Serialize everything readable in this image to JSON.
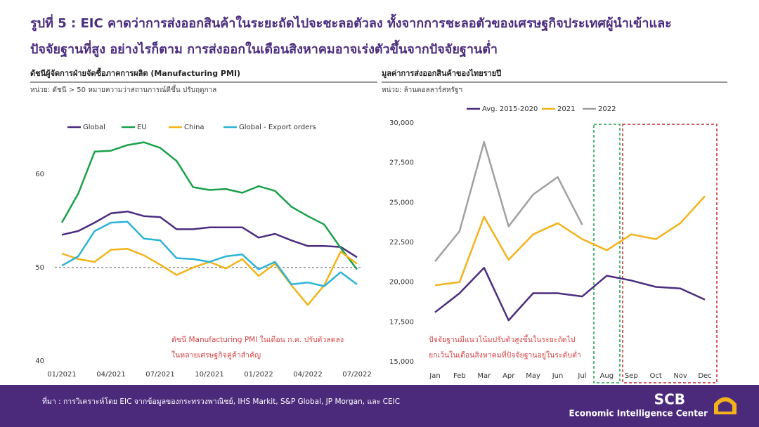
{
  "title": [
    "รูปที่ 5 : EIC คาดว่าการส่งออกสินค้าในระยะถัดไปจะชะลอตัวลง ทั้งจากการชะลอตัวของเศรษฐกิจประเทศผู้นำเข้าและ",
    "ปัจจัยฐานที่สูง อย่างไรก็ตาม การส่งออกในเดือนสิงหาคมอาจเร่งตัวขึ้นจากปัจจัยฐานต่ำ"
  ],
  "chart_data": [
    {
      "type": "line",
      "title": "ดัชนีผู้จัดการฝ่ายจัดซื้อภาคการผลิต (Manufacturing PMI)",
      "subtitle": "หน่วย: ดัชนี > 50 หมายความว่าสถานการณ์ดีขึ้น ปรับฤดูกาล",
      "categories": [
        "01/2021",
        null,
        null,
        "04/2021",
        null,
        null,
        "07/2021",
        null,
        null,
        "10/2021",
        null,
        null,
        "01/2022",
        null,
        null,
        "04/2022",
        null,
        null,
        "07/2022"
      ],
      "series": [
        {
          "name": "Global",
          "color": "#4b2d7f",
          "values": [
            53.5,
            53.9,
            54.8,
            55.8,
            56.0,
            55.5,
            55.4,
            54.1,
            54.1,
            54.3,
            54.3,
            54.3,
            53.2,
            53.6,
            52.9,
            52.3,
            52.3,
            52.2,
            51.1
          ]
        },
        {
          "name": "EU",
          "color": "#1aa04a",
          "values": [
            54.8,
            57.9,
            62.4,
            62.5,
            63.1,
            63.4,
            62.8,
            61.4,
            58.6,
            58.3,
            58.4,
            58.0,
            58.7,
            58.2,
            56.5,
            55.5,
            54.6,
            52.1,
            49.8
          ]
        },
        {
          "name": "China",
          "color": "#f2b31a",
          "values": [
            51.5,
            50.9,
            50.6,
            51.9,
            52.0,
            51.3,
            50.3,
            49.2,
            50.0,
            50.6,
            49.9,
            50.9,
            49.1,
            50.4,
            48.1,
            46.0,
            48.1,
            51.7,
            50.4
          ]
        },
        {
          "name": "Global - Export orders",
          "color": "#2bb3d6",
          "values": [
            50.2,
            51.2,
            53.9,
            54.8,
            54.9,
            53.1,
            52.9,
            51.0,
            50.9,
            50.6,
            51.2,
            51.4,
            49.8,
            50.6,
            48.2,
            48.4,
            48.0,
            49.5,
            48.2
          ]
        }
      ],
      "ylim": [
        40,
        66
      ],
      "yticks": [
        40,
        50,
        60
      ],
      "grid": false,
      "reference_line": 50,
      "annotation": [
        "ดัชนี Manufacturing PMI ในเดือน ก.ค. ปรับตัวลดลง",
        "ในหลายเศรษฐกิจคู่ค้าสำคัญ"
      ]
    },
    {
      "type": "line",
      "title": "มูลค่าการส่งออกสินค้าของไทยรายปี",
      "subtitle": "หน่วย: ล้านดอลลาร์สหรัฐฯ",
      "categories": [
        "Jan",
        "Feb",
        "Mar",
        "Apr",
        "May",
        "Jun",
        "Jul",
        "Aug",
        "Sep",
        "Oct",
        "Nov",
        "Dec"
      ],
      "series": [
        {
          "name": "Avg. 2015-2020",
          "color": "#4b2d7f",
          "values": [
            18100,
            19300,
            20900,
            17600,
            19300,
            19300,
            19100,
            20400,
            20100,
            19700,
            19600,
            18900
          ]
        },
        {
          "name": "2021",
          "color": "#f2b31a",
          "values": [
            19800,
            20000,
            24100,
            21400,
            23000,
            23700,
            22700,
            22000,
            23000,
            22700,
            23700,
            25400
          ]
        },
        {
          "name": "2022",
          "color": "#a0a0a0",
          "values": [
            21300,
            23200,
            28800,
            23500,
            25500,
            26600,
            23600,
            null,
            null,
            null,
            null,
            null
          ]
        }
      ],
      "ylim": [
        15000,
        30000
      ],
      "yticks": [
        {
          "value": 15000,
          "label": "15,000"
        },
        {
          "value": 17500,
          "label": "17,500"
        },
        {
          "value": 20000,
          "label": "20,000"
        },
        {
          "value": 22500,
          "label": "22,500"
        },
        {
          "value": 25000,
          "label": "25,000"
        },
        {
          "value": 27500,
          "label": "27,500"
        },
        {
          "value": 30000,
          "label": "30,000"
        }
      ],
      "grid": false,
      "annotation": [
        "ปัจจัยฐานมีแนวโน้มปรับตัวสูงขึ้นในระยะถัดไป",
        "ยกเว้นในเดือนสิงหาคมที่ปัจจัยฐานอยู่ในระดับต่ำ"
      ]
    }
  ],
  "footer": {
    "source": "ที่มา : การวิเคราะห์โดย EIC จากข้อมูลของกระทรวงพาณิชย์, IHS Markit, S&P Global, JP Morgan, และ CEIC",
    "logo": "SCB",
    "org": "Economic Intelligence Center"
  }
}
